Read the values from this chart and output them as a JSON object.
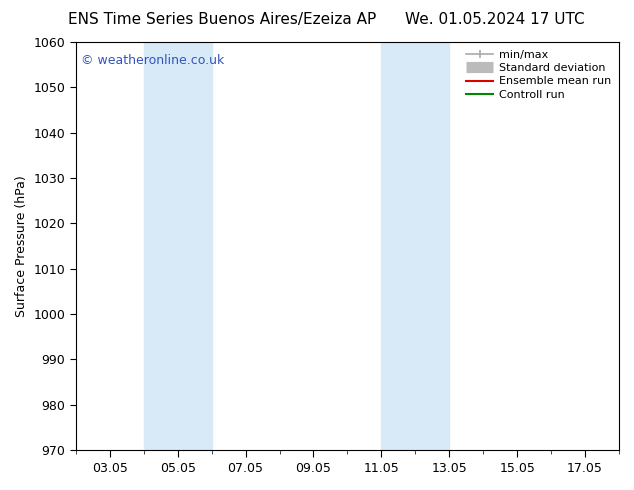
{
  "title_left": "ENS Time Series Buenos Aires/Ezeiza AP",
  "title_right": "We. 01.05.2024 17 UTC",
  "ylabel": "Surface Pressure (hPa)",
  "ylim": [
    970,
    1060
  ],
  "yticks": [
    970,
    980,
    990,
    1000,
    1010,
    1020,
    1030,
    1040,
    1050,
    1060
  ],
  "xtick_labels": [
    "03.05",
    "05.05",
    "07.05",
    "09.05",
    "11.05",
    "13.05",
    "15.05",
    "17.05"
  ],
  "xtick_positions": [
    2,
    4,
    6,
    8,
    10,
    12,
    14,
    16
  ],
  "xlim": [
    1,
    17
  ],
  "background_color": "#ffffff",
  "plot_bg_color": "#ffffff",
  "shaded_bands": [
    {
      "x_start": 3,
      "x_end": 4,
      "color": "#d8eaf8"
    },
    {
      "x_start": 4,
      "x_end": 5,
      "color": "#d8eaf8"
    },
    {
      "x_start": 10,
      "x_end": 11,
      "color": "#d8eaf8"
    },
    {
      "x_start": 11,
      "x_end": 12,
      "color": "#d8eaf8"
    }
  ],
  "watermark": "© weatheronline.co.uk",
  "watermark_color": "#3355bb",
  "legend_items": [
    {
      "label": "min/max",
      "color": "#aaaaaa",
      "lw": 1.2,
      "type": "minmax"
    },
    {
      "label": "Standard deviation",
      "color": "#bbbbbb",
      "lw": 8,
      "type": "thick"
    },
    {
      "label": "Ensemble mean run",
      "color": "#dd0000",
      "lw": 1.5,
      "type": "line"
    },
    {
      "label": "Controll run",
      "color": "#008800",
      "lw": 1.5,
      "type": "line"
    }
  ],
  "title_fontsize": 11,
  "axis_label_fontsize": 9,
  "tick_fontsize": 9,
  "watermark_fontsize": 9
}
